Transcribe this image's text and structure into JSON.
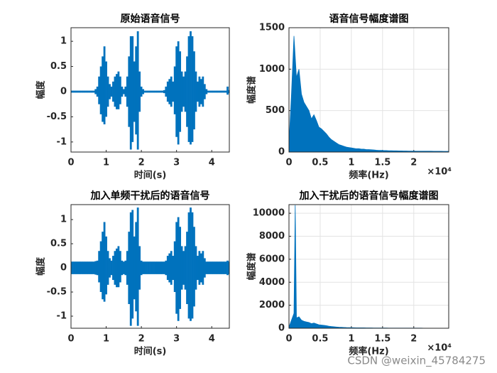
{
  "chart_data": [
    {
      "type": "waveform",
      "title": "原始语音信号",
      "xlabel": "时间(s)",
      "ylabel": "幅度",
      "x": [
        0,
        0.05,
        0.1,
        0.15,
        0.2,
        0.25,
        0.3,
        0.35,
        0.4,
        0.45,
        0.5,
        0.55,
        0.6,
        0.65,
        0.7,
        0.75,
        0.8,
        0.85,
        0.9,
        0.95,
        1,
        1.05,
        1.1,
        1.15,
        1.2,
        1.25,
        1.3,
        1.35,
        1.4,
        1.45,
        1.5,
        1.55,
        1.6,
        1.65,
        1.7,
        1.75,
        1.8,
        1.85,
        1.9,
        1.95,
        2,
        2.05,
        2.1,
        2.15,
        2.2,
        2.25,
        2.3,
        2.35,
        2.4,
        2.45,
        2.5,
        2.55,
        2.6,
        2.65,
        2.7,
        2.75,
        2.8,
        2.85,
        2.9,
        2.95,
        3,
        3.05,
        3.1,
        3.15,
        3.2,
        3.25,
        3.3,
        3.35,
        3.4,
        3.45,
        3.5,
        3.55,
        3.6,
        3.65,
        3.7,
        3.75,
        3.8,
        3.85,
        3.9,
        3.95,
        4,
        4.05,
        4.1,
        4.15,
        4.2,
        4.25,
        4.3,
        4.35,
        4.4,
        4.45,
        4.5
      ],
      "series": [
        {
          "color": "#0072bd",
          "values": [
            0.02,
            0.02,
            0.02,
            0.02,
            0.02,
            0.02,
            0.02,
            0.02,
            0.02,
            0.02,
            0.02,
            0.02,
            0.02,
            0.02,
            0.05,
            0.1,
            0.3,
            0.5,
            0.7,
            0.9,
            0.6,
            0.3,
            0.15,
            0.1,
            0.2,
            0.3,
            0.35,
            0.4,
            0.3,
            0.1,
            0.05,
            0.1,
            0.3,
            0.7,
            1.1,
            1.1,
            0.6,
            0.9,
            1.2,
            0.4,
            0.1,
            0.05,
            0.02,
            0.02,
            0.02,
            0.02,
            0.02,
            0.02,
            0.02,
            0.02,
            0.02,
            0.02,
            0.02,
            0.03,
            0.1,
            0.2,
            0.25,
            0.3,
            0.2,
            0.5,
            0.9,
            1.0,
            0.8,
            0.4,
            0.3,
            0.4,
            0.7,
            1.1,
            1.2,
            1.1,
            0.8,
            0.4,
            0.2,
            0.3,
            0.25,
            0.3,
            0.15,
            0.05,
            0.02,
            0.02,
            0.02,
            0.02,
            0.02,
            0.02,
            0.02,
            0.02,
            0.02,
            0.02,
            0.02,
            0.1,
            0.03
          ]
        },
        {
          "color": "#0072bd",
          "values": [
            -0.02,
            -0.02,
            -0.02,
            -0.02,
            -0.02,
            -0.02,
            -0.02,
            -0.02,
            -0.02,
            -0.02,
            -0.02,
            -0.02,
            -0.02,
            -0.02,
            -0.05,
            -0.1,
            -0.25,
            -0.45,
            -0.6,
            -0.65,
            -0.5,
            -0.3,
            -0.15,
            -0.1,
            -0.2,
            -0.3,
            -0.35,
            -0.35,
            -0.25,
            -0.1,
            -0.05,
            -0.1,
            -0.3,
            -0.7,
            -1.15,
            -1.0,
            -0.6,
            -0.85,
            -1.15,
            -0.4,
            -0.1,
            -0.05,
            -0.02,
            -0.02,
            -0.02,
            -0.02,
            -0.02,
            -0.02,
            -0.02,
            -0.02,
            -0.02,
            -0.02,
            -0.02,
            -0.03,
            -0.1,
            -0.2,
            -0.25,
            -0.3,
            -0.2,
            -0.45,
            -0.9,
            -1.05,
            -0.8,
            -0.4,
            -0.3,
            -0.4,
            -0.7,
            -1.0,
            -1.05,
            -1.0,
            -0.75,
            -0.4,
            -0.2,
            -0.3,
            -0.25,
            -0.3,
            -0.15,
            -0.05,
            -0.02,
            -0.02,
            -0.02,
            -0.02,
            -0.02,
            -0.02,
            -0.02,
            -0.02,
            -0.02,
            -0.02,
            -0.02,
            -0.06,
            -0.03
          ]
        }
      ],
      "xlim": [
        0,
        4.5
      ],
      "ylim": [
        -1.2,
        1.27
      ],
      "xticks": [
        0,
        1,
        2,
        3,
        4
      ],
      "yticks": [
        -1,
        -0.5,
        0,
        0.5,
        1
      ],
      "grid": false
    },
    {
      "type": "area",
      "title": "语音信号幅度谱图",
      "xlabel": "频率(Hz)",
      "ylabel": "幅度谱",
      "x_exponent_label": "×10⁴",
      "x": [
        0,
        400,
        800,
        1200,
        1600,
        2000,
        2400,
        2800,
        3200,
        3600,
        4000,
        4400,
        4800,
        5200,
        5600,
        6000,
        6400,
        6800,
        7200,
        7600,
        8000,
        8400,
        8800,
        9200,
        9600,
        10000,
        10400,
        10800,
        11200,
        11600,
        12000,
        12400,
        12800,
        13200,
        13600,
        14000,
        14400,
        14800,
        15200,
        15600,
        16000,
        16400,
        16800,
        17200,
        17600,
        18000,
        18400,
        18800,
        19200,
        19600,
        20000,
        20400,
        20800,
        21200,
        21600,
        22000,
        22400,
        22800,
        23200,
        23600,
        24000,
        24400,
        24800,
        25200,
        25600
      ],
      "series": [
        {
          "color": "#0072bd",
          "values": [
            100,
            700,
            1400,
            900,
            1000,
            700,
            600,
            550,
            500,
            400,
            450,
            380,
            300,
            280,
            250,
            220,
            180,
            150,
            130,
            110,
            90,
            80,
            70,
            60,
            55,
            50,
            45,
            40,
            40,
            35,
            35,
            30,
            30,
            28,
            25,
            22,
            20,
            20,
            18,
            18,
            16,
            16,
            15,
            15,
            14,
            14,
            13,
            13,
            12,
            12,
            12,
            11,
            11,
            11,
            10,
            10,
            10,
            10,
            9,
            9,
            9,
            9,
            8,
            8,
            8
          ]
        }
      ],
      "xlim": [
        0,
        25600
      ],
      "ylim": [
        0,
        1500
      ],
      "xticks": [
        0,
        {
          "value": 5000,
          "label": "0.5"
        },
        {
          "value": 10000,
          "label": "1"
        },
        {
          "value": 15000,
          "label": "1.5"
        },
        {
          "value": 20000,
          "label": "2"
        }
      ],
      "yticks": [
        0,
        500,
        1000,
        1500
      ],
      "grid": true
    },
    {
      "type": "waveform",
      "title": "加入单频干扰后的语音信号",
      "xlabel": "时间(s)",
      "ylabel": "幅度",
      "x": [
        0,
        0.05,
        0.1,
        0.15,
        0.2,
        0.25,
        0.3,
        0.35,
        0.4,
        0.45,
        0.5,
        0.55,
        0.6,
        0.65,
        0.7,
        0.75,
        0.8,
        0.85,
        0.9,
        0.95,
        1,
        1.05,
        1.1,
        1.15,
        1.2,
        1.25,
        1.3,
        1.35,
        1.4,
        1.45,
        1.5,
        1.55,
        1.6,
        1.65,
        1.7,
        1.75,
        1.8,
        1.85,
        1.9,
        1.95,
        2,
        2.05,
        2.1,
        2.15,
        2.2,
        2.25,
        2.3,
        2.35,
        2.4,
        2.45,
        2.5,
        2.55,
        2.6,
        2.65,
        2.7,
        2.75,
        2.8,
        2.85,
        2.9,
        2.95,
        3,
        3.05,
        3.1,
        3.15,
        3.2,
        3.25,
        3.3,
        3.35,
        3.4,
        3.45,
        3.5,
        3.55,
        3.6,
        3.65,
        3.7,
        3.75,
        3.8,
        3.85,
        3.9,
        3.95,
        4,
        4.05,
        4.1,
        4.15,
        4.2,
        4.25,
        4.3,
        4.35,
        4.4,
        4.45,
        4.5
      ],
      "series": [
        {
          "color": "#0072bd",
          "values": [
            0.13,
            0.13,
            0.13,
            0.13,
            0.13,
            0.13,
            0.13,
            0.13,
            0.13,
            0.13,
            0.13,
            0.13,
            0.13,
            0.13,
            0.14,
            0.15,
            0.35,
            0.55,
            0.75,
            0.95,
            0.65,
            0.35,
            0.2,
            0.15,
            0.25,
            0.35,
            0.4,
            0.45,
            0.35,
            0.15,
            0.13,
            0.15,
            0.35,
            0.75,
            1.15,
            1.2,
            0.65,
            0.95,
            1.25,
            0.45,
            0.15,
            0.13,
            0.13,
            0.13,
            0.13,
            0.13,
            0.13,
            0.13,
            0.13,
            0.13,
            0.13,
            0.13,
            0.13,
            0.13,
            0.15,
            0.25,
            0.3,
            0.35,
            0.25,
            0.55,
            0.95,
            1.05,
            0.85,
            0.45,
            0.35,
            0.45,
            0.75,
            1.15,
            1.25,
            1.15,
            0.85,
            0.45,
            0.25,
            0.35,
            0.3,
            0.35,
            0.2,
            0.13,
            0.13,
            0.13,
            0.13,
            0.13,
            0.13,
            0.13,
            0.13,
            0.13,
            0.13,
            0.13,
            0.13,
            0.15,
            0.13
          ]
        },
        {
          "color": "#0072bd",
          "values": [
            -0.13,
            -0.13,
            -0.13,
            -0.13,
            -0.13,
            -0.13,
            -0.13,
            -0.13,
            -0.13,
            -0.13,
            -0.13,
            -0.13,
            -0.13,
            -0.13,
            -0.14,
            -0.15,
            -0.3,
            -0.5,
            -0.65,
            -0.7,
            -0.55,
            -0.35,
            -0.2,
            -0.15,
            -0.25,
            -0.35,
            -0.4,
            -0.4,
            -0.3,
            -0.15,
            -0.13,
            -0.15,
            -0.35,
            -0.75,
            -1.2,
            -1.05,
            -0.65,
            -0.9,
            -1.2,
            -0.45,
            -0.15,
            -0.13,
            -0.13,
            -0.13,
            -0.13,
            -0.13,
            -0.13,
            -0.13,
            -0.13,
            -0.13,
            -0.13,
            -0.13,
            -0.13,
            -0.13,
            -0.15,
            -0.25,
            -0.3,
            -0.35,
            -0.25,
            -0.5,
            -0.95,
            -1.1,
            -0.85,
            -0.45,
            -0.35,
            -0.45,
            -0.75,
            -1.05,
            -1.1,
            -1.05,
            -0.8,
            -0.45,
            -0.25,
            -0.35,
            -0.3,
            -0.35,
            -0.2,
            -0.13,
            -0.13,
            -0.13,
            -0.13,
            -0.13,
            -0.13,
            -0.13,
            -0.13,
            -0.13,
            -0.13,
            -0.13,
            -0.13,
            -0.15,
            -0.13
          ]
        }
      ],
      "xlim": [
        0,
        4.5
      ],
      "ylim": [
        -1.25,
        1.31
      ],
      "xticks": [
        0,
        1,
        2,
        3,
        4
      ],
      "yticks": [
        -1,
        -0.5,
        0,
        0.5,
        1
      ],
      "grid": false
    },
    {
      "type": "area",
      "title": "加入干扰后的语音信号幅度谱图",
      "xlabel": "频率(Hz)",
      "ylabel": "幅度谱",
      "x_exponent_label": "×10⁴",
      "x": [
        0,
        400,
        800,
        1000,
        1200,
        1600,
        2000,
        2400,
        2800,
        3200,
        3600,
        4000,
        4400,
        4800,
        5200,
        5600,
        6000,
        6400,
        6800,
        7200,
        7600,
        8000,
        8400,
        8800,
        9200,
        9600,
        10000,
        10400,
        10800,
        11200,
        11600,
        12000,
        12400,
        12800,
        13200,
        13600,
        14000,
        14400,
        14800,
        15200,
        15600,
        16000,
        16400,
        16800,
        17200,
        17600,
        18000,
        18400,
        18800,
        19200,
        19600,
        20000,
        20400,
        20800,
        21200,
        21600,
        22000,
        22400,
        22800,
        23200,
        23600,
        24000,
        24400,
        24800,
        25200,
        25600
      ],
      "series": [
        {
          "color": "#0072bd",
          "values": [
            100,
            700,
            1300,
            10700,
            900,
            1000,
            700,
            600,
            550,
            500,
            400,
            450,
            380,
            300,
            280,
            250,
            220,
            180,
            150,
            130,
            110,
            90,
            80,
            70,
            60,
            55,
            50,
            45,
            40,
            40,
            35,
            35,
            30,
            30,
            28,
            25,
            22,
            20,
            20,
            18,
            18,
            16,
            16,
            15,
            15,
            14,
            14,
            13,
            13,
            12,
            12,
            12,
            11,
            11,
            11,
            10,
            10,
            10,
            10,
            9,
            9,
            9,
            9,
            8,
            8,
            8
          ]
        }
      ],
      "xlim": [
        0,
        25600
      ],
      "ylim": [
        0,
        10750
      ],
      "xticks": [
        0,
        {
          "value": 5000,
          "label": "0.5"
        },
        {
          "value": 10000,
          "label": "1"
        },
        {
          "value": 15000,
          "label": "1.5"
        },
        {
          "value": 20000,
          "label": "2"
        }
      ],
      "yticks": [
        0,
        2000,
        4000,
        6000,
        8000,
        10000
      ],
      "grid": true
    }
  ],
  "watermark": "CSDN @weixin_45784275"
}
